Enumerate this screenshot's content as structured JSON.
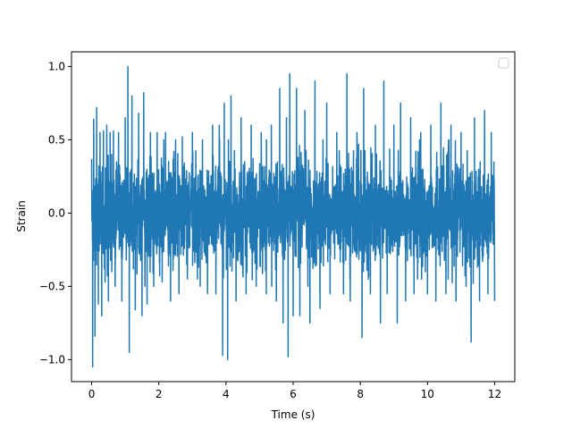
{
  "chart_data": {
    "type": "line",
    "title": "",
    "xlabel": "Time (s)",
    "ylabel": "Strain",
    "xlim": [
      -0.6,
      12.6
    ],
    "ylim": [
      -1.15,
      1.1
    ],
    "xticks": [
      0,
      2,
      4,
      6,
      8,
      10,
      12
    ],
    "xtick_labels": [
      "0",
      "2",
      "4",
      "6",
      "8",
      "10",
      "12"
    ],
    "yticks": [
      -1.0,
      -0.5,
      0.0,
      0.5,
      1.0
    ],
    "ytick_labels": [
      "−1.0",
      "−0.5",
      "0.0",
      "0.5",
      "1.0"
    ],
    "grid": false,
    "legend": {
      "placement": "upper right",
      "entries": []
    },
    "series": [
      {
        "color": "#1f77b4",
        "x_start": 0,
        "x_end": 12,
        "points": [
          [
            0.0,
            0.37
          ],
          [
            0.03,
            -1.05
          ],
          [
            0.06,
            0.64
          ],
          [
            0.1,
            -0.84
          ],
          [
            0.15,
            0.72
          ],
          [
            0.2,
            -0.62
          ],
          [
            0.25,
            0.55
          ],
          [
            0.3,
            -0.7
          ],
          [
            0.35,
            0.56
          ],
          [
            0.4,
            -0.47
          ],
          [
            0.45,
            0.6
          ],
          [
            0.5,
            -0.6
          ],
          [
            0.55,
            0.55
          ],
          [
            0.6,
            -0.4
          ],
          [
            0.65,
            0.56
          ],
          [
            0.7,
            -0.5
          ],
          [
            0.8,
            0.55
          ],
          [
            0.9,
            -0.6
          ],
          [
            1.0,
            0.65
          ],
          [
            1.08,
            1.0
          ],
          [
            1.12,
            -0.95
          ],
          [
            1.2,
            0.8
          ],
          [
            1.3,
            -0.66
          ],
          [
            1.4,
            0.68
          ],
          [
            1.5,
            -0.7
          ],
          [
            1.55,
            0.82
          ],
          [
            1.65,
            -0.62
          ],
          [
            1.75,
            0.55
          ],
          [
            1.85,
            -0.5
          ],
          [
            1.95,
            0.55
          ],
          [
            2.1,
            -0.47
          ],
          [
            2.2,
            0.55
          ],
          [
            2.35,
            -0.6
          ],
          [
            2.5,
            0.5
          ],
          [
            2.6,
            -0.55
          ],
          [
            2.7,
            0.52
          ],
          [
            2.85,
            -0.45
          ],
          [
            3.0,
            0.55
          ],
          [
            3.15,
            -0.45
          ],
          [
            3.3,
            0.5
          ],
          [
            3.45,
            -0.55
          ],
          [
            3.6,
            0.6
          ],
          [
            3.7,
            -0.55
          ],
          [
            3.8,
            0.6
          ],
          [
            3.9,
            -0.97
          ],
          [
            3.95,
            0.75
          ],
          [
            4.05,
            -1.0
          ],
          [
            4.15,
            0.8
          ],
          [
            4.3,
            -0.6
          ],
          [
            4.45,
            0.65
          ],
          [
            4.6,
            -0.55
          ],
          [
            4.75,
            0.6
          ],
          [
            4.9,
            -0.5
          ],
          [
            5.05,
            0.55
          ],
          [
            5.2,
            -0.55
          ],
          [
            5.35,
            0.6
          ],
          [
            5.5,
            -0.6
          ],
          [
            5.6,
            0.85
          ],
          [
            5.7,
            -0.75
          ],
          [
            5.8,
            0.65
          ],
          [
            5.85,
            -0.98
          ],
          [
            5.9,
            0.95
          ],
          [
            6.0,
            -0.7
          ],
          [
            6.1,
            0.85
          ],
          [
            6.2,
            -0.7
          ],
          [
            6.35,
            0.7
          ],
          [
            6.5,
            -0.75
          ],
          [
            6.65,
            0.9
          ],
          [
            6.8,
            -0.65
          ],
          [
            7.0,
            0.75
          ],
          [
            7.1,
            -0.55
          ],
          [
            7.3,
            0.55
          ],
          [
            7.5,
            -0.55
          ],
          [
            7.6,
            0.95
          ],
          [
            7.7,
            -0.6
          ],
          [
            7.9,
            0.55
          ],
          [
            8.05,
            -0.85
          ],
          [
            8.1,
            0.85
          ],
          [
            8.3,
            -0.55
          ],
          [
            8.45,
            0.6
          ],
          [
            8.6,
            -0.75
          ],
          [
            8.7,
            0.9
          ],
          [
            8.8,
            -0.55
          ],
          [
            9.0,
            0.6
          ],
          [
            9.1,
            -0.75
          ],
          [
            9.2,
            0.75
          ],
          [
            9.35,
            -0.6
          ],
          [
            9.5,
            0.65
          ],
          [
            9.6,
            -0.55
          ],
          [
            9.8,
            0.55
          ],
          [
            10.0,
            -0.55
          ],
          [
            10.1,
            0.6
          ],
          [
            10.25,
            -0.6
          ],
          [
            10.4,
            0.75
          ],
          [
            10.55,
            -0.55
          ],
          [
            10.7,
            0.6
          ],
          [
            10.85,
            -0.6
          ],
          [
            11.0,
            0.55
          ],
          [
            11.15,
            -0.5
          ],
          [
            11.3,
            -0.88
          ],
          [
            11.4,
            0.65
          ],
          [
            11.55,
            -0.6
          ],
          [
            11.7,
            0.7
          ],
          [
            11.8,
            -0.55
          ],
          [
            11.9,
            0.55
          ],
          [
            12.0,
            -0.6
          ]
        ]
      }
    ]
  }
}
